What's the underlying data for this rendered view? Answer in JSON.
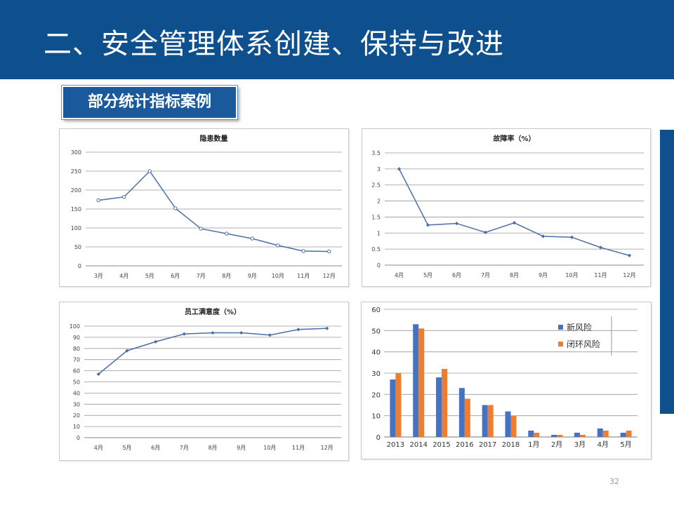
{
  "header": {
    "title": "二、安全管理体系创建、保持与改进"
  },
  "badge": {
    "label": "部分统计指标案例"
  },
  "page_number": "32",
  "colors": {
    "header_bg": "#0e4f8e",
    "line_series": "#4a6fa5",
    "bar_blue": "#4472c4",
    "bar_orange": "#ed7d31"
  },
  "chart_data": [
    {
      "type": "line",
      "title": "隐患数量",
      "categories": [
        "3月",
        "4月",
        "5月",
        "6月",
        "7月",
        "8月",
        "9月",
        "10月",
        "11月",
        "12月"
      ],
      "values": [
        173,
        182,
        250,
        152,
        98,
        85,
        72,
        54,
        39,
        38
      ],
      "ylim": [
        0,
        300
      ],
      "yticks": [
        "0",
        "50",
        "100",
        "150",
        "200",
        "250",
        "300"
      ],
      "marker": "circle-hollow",
      "grid": true
    },
    {
      "type": "line",
      "title": "故障率（%）",
      "categories": [
        "4月",
        "5月",
        "6月",
        "7月",
        "8月",
        "9月",
        "10月",
        "11月",
        "12月"
      ],
      "values": [
        3.0,
        1.25,
        1.3,
        1.02,
        1.32,
        0.9,
        0.87,
        0.55,
        0.3
      ],
      "ylim": [
        0,
        3.5
      ],
      "yticks": [
        "0",
        "0.5",
        "1",
        "1.5",
        "2",
        "2.5",
        "3",
        "3.5"
      ],
      "marker": "diamond",
      "grid": true
    },
    {
      "type": "line",
      "title": "员工满意度（%）",
      "categories": [
        "4月",
        "5月",
        "6月",
        "7月",
        "8月",
        "9月",
        "10月",
        "11月",
        "12月"
      ],
      "values": [
        57,
        78,
        86,
        93,
        94,
        94,
        92,
        97,
        98
      ],
      "ylim": [
        0,
        100
      ],
      "yticks": [
        "0",
        "10",
        "20",
        "30",
        "40",
        "50",
        "60",
        "70",
        "80",
        "90",
        "100"
      ],
      "marker": "diamond",
      "grid": true
    },
    {
      "type": "bar",
      "title": "",
      "categories": [
        "2013",
        "2014",
        "2015",
        "2016",
        "2017",
        "2018",
        "1月",
        "2月",
        "3月",
        "4月",
        "5月"
      ],
      "series": [
        {
          "name": "新风险",
          "values": [
            27,
            53,
            28,
            23,
            15,
            12,
            3,
            1,
            2,
            4,
            2
          ]
        },
        {
          "name": "闭环风险",
          "values": [
            30,
            51,
            32,
            18,
            15,
            10,
            2,
            1,
            1,
            3,
            3
          ]
        }
      ],
      "ylim": [
        0,
        60
      ],
      "yticks": [
        "0",
        "10",
        "20",
        "30",
        "40",
        "50",
        "60"
      ],
      "legend": "top-right",
      "grid": true
    }
  ]
}
